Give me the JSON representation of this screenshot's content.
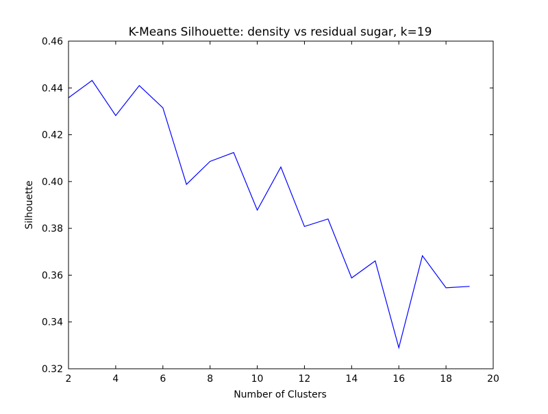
{
  "chart_data": {
    "type": "line",
    "title": "K-Means Silhouette: density vs residual sugar, k=19",
    "xlabel": "Number of Clusters",
    "ylabel": "Silhouette",
    "xlim": [
      2,
      20
    ],
    "ylim": [
      0.32,
      0.46
    ],
    "xticks": [
      2,
      4,
      6,
      8,
      10,
      12,
      14,
      16,
      18,
      20
    ],
    "xtick_labels": [
      "2",
      "4",
      "6",
      "8",
      "10",
      "12",
      "14",
      "16",
      "18",
      "20"
    ],
    "yticks": [
      0.32,
      0.34,
      0.36,
      0.38,
      0.4,
      0.42,
      0.44,
      0.46
    ],
    "ytick_labels": [
      "0.32",
      "0.34",
      "0.36",
      "0.38",
      "0.40",
      "0.42",
      "0.44",
      "0.46"
    ],
    "grid": false,
    "legend": "none",
    "series": [
      {
        "color": "#0000ff",
        "x": [
          2,
          3,
          4,
          5,
          6,
          7,
          8,
          9,
          10,
          11,
          12,
          13,
          14,
          15,
          16,
          17,
          18,
          19
        ],
        "y": [
          0.4358,
          0.4432,
          0.4282,
          0.441,
          0.4315,
          0.3988,
          0.4086,
          0.4124,
          0.3878,
          0.4062,
          0.3808,
          0.384,
          0.3588,
          0.3661,
          0.329,
          0.3683,
          0.3546,
          0.3552
        ]
      }
    ]
  }
}
